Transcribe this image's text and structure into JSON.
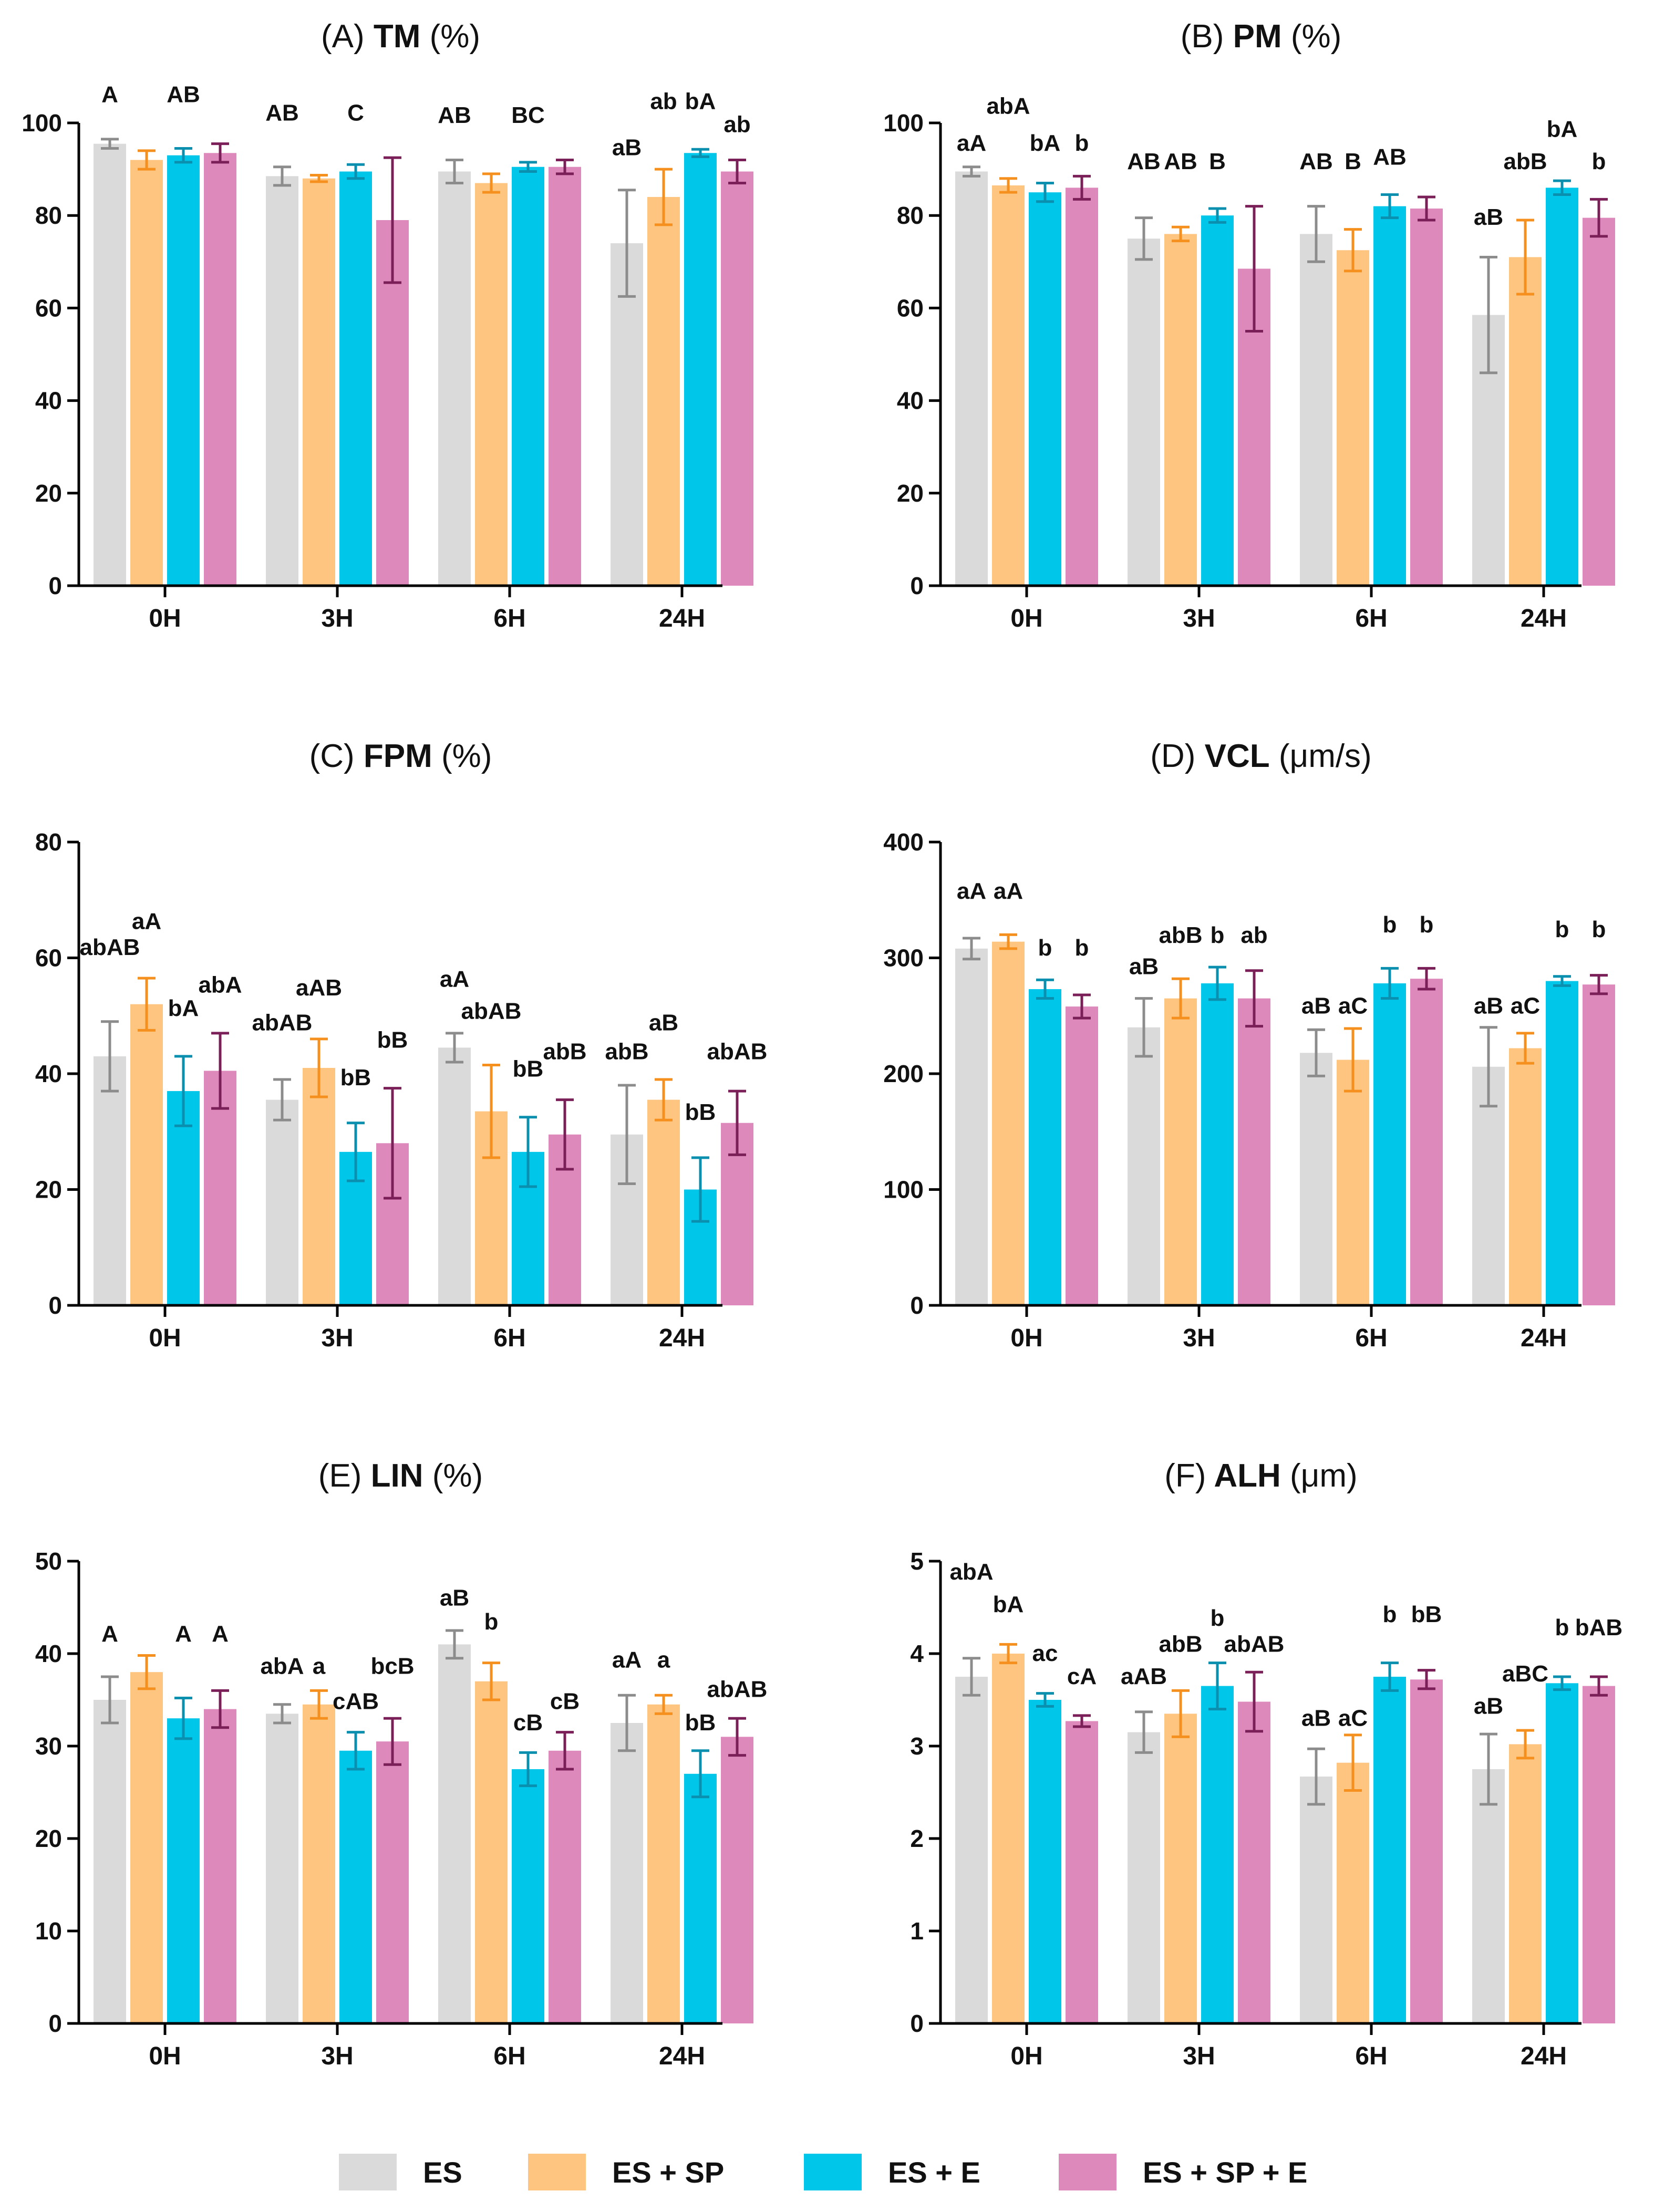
{
  "legend": {
    "items": [
      {
        "label": "ES",
        "color": "#dadada"
      },
      {
        "label": "ES + SP",
        "color": "#fdc57f"
      },
      {
        "label": "ES + E",
        "color": "#00c6ea"
      },
      {
        "label": "ES + SP + E",
        "color": "#dd89bb"
      }
    ]
  },
  "chart_data": [
    {
      "type": "bar",
      "title_prefix": "(A)",
      "title_metric": "TM",
      "title_unit": "(%)",
      "categories": [
        "0H",
        "3H",
        "6H",
        "24H"
      ],
      "ylim": [
        0,
        100
      ],
      "yticks": [
        "0",
        "20",
        "40",
        "60",
        "80",
        "100"
      ],
      "series": [
        {
          "name": "ES",
          "values": [
            95.5,
            88.5,
            89.5,
            74
          ],
          "errors": [
            1,
            2,
            2.5,
            11.5
          ]
        },
        {
          "name": "ES + SP",
          "values": [
            92,
            88,
            87,
            84
          ],
          "errors": [
            2,
            0.7,
            2,
            6
          ]
        },
        {
          "name": "ES + E",
          "values": [
            93,
            89.5,
            90.5,
            93.5
          ],
          "errors": [
            1.5,
            1.5,
            1,
            0.8
          ]
        },
        {
          "name": "ES + SP + E",
          "values": [
            93.5,
            79,
            90.5,
            89.5
          ],
          "errors": [
            2,
            13.5,
            1.5,
            2.5
          ]
        }
      ],
      "annotations": [
        {
          "category": 0,
          "series": 0,
          "text": "A",
          "value": 104.5
        },
        {
          "category": 0,
          "series": 2,
          "text": "AB",
          "value": 104.5
        },
        {
          "category": 1,
          "series": 0,
          "text": "AB",
          "value": 100.5
        },
        {
          "category": 1,
          "series": 2,
          "text": "C",
          "value": 100.5
        },
        {
          "category": 2,
          "series": 0,
          "text": "AB",
          "value": 100
        },
        {
          "category": 2,
          "series": 2,
          "text": "BC",
          "value": 100
        },
        {
          "category": 3,
          "series": 0,
          "text": "aB",
          "value": 93
        },
        {
          "category": 3,
          "series": 1,
          "text": "ab",
          "value": 103
        },
        {
          "category": 3,
          "series": 2,
          "text": "bA",
          "value": 103
        },
        {
          "category": 3,
          "series": 3,
          "text": "ab",
          "value": 98
        }
      ]
    },
    {
      "type": "bar",
      "title_prefix": "(B)",
      "title_metric": "PM",
      "title_unit": "(%)",
      "categories": [
        "0H",
        "3H",
        "6H",
        "24H"
      ],
      "ylim": [
        0,
        100
      ],
      "yticks": [
        "0",
        "20",
        "40",
        "60",
        "80",
        "100"
      ],
      "series": [
        {
          "name": "ES",
          "values": [
            89.5,
            75,
            76,
            58.5
          ],
          "errors": [
            1,
            4.5,
            6,
            12.5
          ]
        },
        {
          "name": "ES + SP",
          "values": [
            86.5,
            76,
            72.5,
            71
          ],
          "errors": [
            1.5,
            1.5,
            4.5,
            8
          ]
        },
        {
          "name": "ES + E",
          "values": [
            85,
            80,
            82,
            86
          ],
          "errors": [
            2,
            1.5,
            2.5,
            1.5
          ]
        },
        {
          "name": "ES + SP + E",
          "values": [
            86,
            68.5,
            81.5,
            79.5
          ],
          "errors": [
            2.5,
            13.5,
            2.5,
            4
          ]
        }
      ],
      "annotations": [
        {
          "category": 0,
          "series": 0,
          "text": "aA",
          "value": 94
        },
        {
          "category": 0,
          "series": 1,
          "text": "abA",
          "value": 102
        },
        {
          "category": 0,
          "series": 2,
          "text": "bA",
          "value": 94
        },
        {
          "category": 0,
          "series": 3,
          "text": "b",
          "value": 94
        },
        {
          "category": 1,
          "series": 0,
          "text": "AB",
          "value": 90
        },
        {
          "category": 1,
          "series": 1,
          "text": "AB",
          "value": 90
        },
        {
          "category": 1,
          "series": 2,
          "text": "B",
          "value": 90
        },
        {
          "category": 2,
          "series": 0,
          "text": "AB",
          "value": 90
        },
        {
          "category": 2,
          "series": 1,
          "text": "B",
          "value": 90
        },
        {
          "category": 2,
          "series": 2,
          "text": "AB",
          "value": 91
        },
        {
          "category": 3,
          "series": 0,
          "text": "aB",
          "value": 78
        },
        {
          "category": 3,
          "series": 1,
          "text": "abB",
          "value": 90
        },
        {
          "category": 3,
          "series": 2,
          "text": "bA",
          "value": 97
        },
        {
          "category": 3,
          "series": 3,
          "text": "b",
          "value": 90
        }
      ]
    },
    {
      "type": "bar",
      "title_prefix": "(C)",
      "title_metric": "FPM",
      "title_unit": "(%)",
      "categories": [
        "0H",
        "3H",
        "6H",
        "24H"
      ],
      "ylim": [
        0,
        80
      ],
      "yticks": [
        "0",
        "20",
        "40",
        "60",
        "80"
      ],
      "series": [
        {
          "name": "ES",
          "values": [
            43,
            35.5,
            44.5,
            29.5
          ],
          "errors": [
            6,
            3.5,
            2.5,
            8.5
          ]
        },
        {
          "name": "ES + SP",
          "values": [
            52,
            41,
            33.5,
            35.5
          ],
          "errors": [
            4.5,
            5,
            8,
            3.5
          ]
        },
        {
          "name": "ES + E",
          "values": [
            37,
            26.5,
            26.5,
            20
          ],
          "errors": [
            6,
            5,
            6,
            5.5
          ]
        },
        {
          "name": "ES + SP + E",
          "values": [
            40.5,
            28,
            29.5,
            31.5
          ],
          "errors": [
            6.5,
            9.5,
            6,
            5.5
          ]
        }
      ],
      "annotations": [
        {
          "category": 0,
          "series": 0,
          "text": "abAB",
          "value": 60.5
        },
        {
          "category": 0,
          "series": 1,
          "text": "aA",
          "value": 65
        },
        {
          "category": 0,
          "series": 2,
          "text": "bA",
          "value": 50
        },
        {
          "category": 0,
          "series": 3,
          "text": "abA",
          "value": 54
        },
        {
          "category": 1,
          "series": 0,
          "text": "abAB",
          "value": 47.5
        },
        {
          "category": 1,
          "series": 1,
          "text": "aAB",
          "value": 53.5
        },
        {
          "category": 1,
          "series": 2,
          "text": "bB",
          "value": 38
        },
        {
          "category": 1,
          "series": 3,
          "text": "bB",
          "value": 44.5
        },
        {
          "category": 2,
          "series": 0,
          "text": "aA",
          "value": 55
        },
        {
          "category": 2,
          "series": 1,
          "text": "abAB",
          "value": 49.5
        },
        {
          "category": 2,
          "series": 2,
          "text": "bB",
          "value": 39.5
        },
        {
          "category": 2,
          "series": 3,
          "text": "abB",
          "value": 42.5
        },
        {
          "category": 3,
          "series": 0,
          "text": "abB",
          "value": 42.5
        },
        {
          "category": 3,
          "series": 1,
          "text": "aB",
          "value": 47.5
        },
        {
          "category": 3,
          "series": 2,
          "text": "bB",
          "value": 32
        },
        {
          "category": 3,
          "series": 3,
          "text": "abAB",
          "value": 42.5
        }
      ]
    },
    {
      "type": "bar",
      "title_prefix": "(D)",
      "title_metric": "VCL",
      "title_unit": "(μm/s)",
      "categories": [
        "0H",
        "3H",
        "6H",
        "24H"
      ],
      "ylim": [
        0,
        400
      ],
      "yticks": [
        "0",
        "100",
        "200",
        "300",
        "400"
      ],
      "series": [
        {
          "name": "ES",
          "values": [
            308,
            240,
            218,
            206
          ],
          "errors": [
            9,
            25,
            20,
            34
          ]
        },
        {
          "name": "ES + SP",
          "values": [
            314,
            265,
            212,
            222
          ],
          "errors": [
            6,
            17,
            27,
            13
          ]
        },
        {
          "name": "ES + E",
          "values": [
            273,
            278,
            278,
            280
          ],
          "errors": [
            8,
            14,
            13,
            4
          ]
        },
        {
          "name": "ES + SP + E",
          "values": [
            258,
            265,
            282,
            277
          ],
          "errors": [
            10,
            24,
            9,
            8
          ]
        }
      ],
      "annotations": [
        {
          "category": 0,
          "series": 0,
          "text": "aA",
          "value": 351
        },
        {
          "category": 0,
          "series": 1,
          "text": "aA",
          "value": 351
        },
        {
          "category": 0,
          "series": 2,
          "text": "b",
          "value": 302
        },
        {
          "category": 0,
          "series": 3,
          "text": "b",
          "value": 302
        },
        {
          "category": 1,
          "series": 0,
          "text": "aB",
          "value": 286
        },
        {
          "category": 1,
          "series": 1,
          "text": "abB",
          "value": 313
        },
        {
          "category": 1,
          "series": 2,
          "text": "b",
          "value": 313
        },
        {
          "category": 1,
          "series": 3,
          "text": "ab",
          "value": 313
        },
        {
          "category": 2,
          "series": 0,
          "text": "aB",
          "value": 252
        },
        {
          "category": 2,
          "series": 1,
          "text": "aC",
          "value": 252
        },
        {
          "category": 2,
          "series": 2,
          "text": "b",
          "value": 322
        },
        {
          "category": 2,
          "series": 3,
          "text": "b",
          "value": 322
        },
        {
          "category": 3,
          "series": 0,
          "text": "aB",
          "value": 252
        },
        {
          "category": 3,
          "series": 1,
          "text": "aC",
          "value": 252
        },
        {
          "category": 3,
          "series": 2,
          "text": "b",
          "value": 318
        },
        {
          "category": 3,
          "series": 3,
          "text": "b",
          "value": 318
        }
      ]
    },
    {
      "type": "bar",
      "title_prefix": "(E)",
      "title_metric": "LIN",
      "title_unit": "(%)",
      "categories": [
        "0H",
        "3H",
        "6H",
        "24H"
      ],
      "ylim": [
        0,
        50
      ],
      "yticks": [
        "0",
        "10",
        "20",
        "30",
        "40",
        "50"
      ],
      "series": [
        {
          "name": "ES",
          "values": [
            35,
            33.5,
            41,
            32.5
          ],
          "errors": [
            2.5,
            1,
            1.5,
            3
          ]
        },
        {
          "name": "ES + SP",
          "values": [
            38,
            34.5,
            37,
            34.5
          ],
          "errors": [
            1.8,
            1.5,
            2,
            1
          ]
        },
        {
          "name": "ES + E",
          "values": [
            33,
            29.5,
            27.5,
            27
          ],
          "errors": [
            2.2,
            2,
            1.8,
            2.5
          ]
        },
        {
          "name": "ES + SP + E",
          "values": [
            34,
            30.5,
            29.5,
            31
          ],
          "errors": [
            2,
            2.5,
            2,
            2
          ]
        }
      ],
      "annotations": [
        {
          "category": 0,
          "series": 0,
          "text": "A",
          "value": 41.3
        },
        {
          "category": 0,
          "series": 2,
          "text": "A",
          "value": 41.3
        },
        {
          "category": 0,
          "series": 3,
          "text": "A",
          "value": 41.3
        },
        {
          "category": 1,
          "series": 0,
          "text": "abA",
          "value": 37.8
        },
        {
          "category": 1,
          "series": 1,
          "text": "a",
          "value": 37.8
        },
        {
          "category": 1,
          "series": 2,
          "text": "cAB",
          "value": 34
        },
        {
          "category": 1,
          "series": 3,
          "text": "bcB",
          "value": 37.8
        },
        {
          "category": 2,
          "series": 0,
          "text": "aB",
          "value": 45.2
        },
        {
          "category": 2,
          "series": 1,
          "text": "b",
          "value": 42.6
        },
        {
          "category": 2,
          "series": 2,
          "text": "cB",
          "value": 31.7
        },
        {
          "category": 2,
          "series": 3,
          "text": "cB",
          "value": 34
        },
        {
          "category": 3,
          "series": 0,
          "text": "aA",
          "value": 38.5
        },
        {
          "category": 3,
          "series": 1,
          "text": "a",
          "value": 38.5
        },
        {
          "category": 3,
          "series": 2,
          "text": "bB",
          "value": 31.7
        },
        {
          "category": 3,
          "series": 3,
          "text": "abAB",
          "value": 35.3
        }
      ]
    },
    {
      "type": "bar",
      "title_prefix": "(F)",
      "title_metric": "ALH",
      "title_unit": "(μm)",
      "categories": [
        "0H",
        "3H",
        "6H",
        "24H"
      ],
      "ylim": [
        0,
        5
      ],
      "yticks": [
        "0",
        "1",
        "2",
        "3",
        "4",
        "5"
      ],
      "series": [
        {
          "name": "ES",
          "values": [
            3.75,
            3.15,
            2.67,
            2.75
          ],
          "errors": [
            0.2,
            0.22,
            0.3,
            0.38
          ]
        },
        {
          "name": "ES + SP",
          "values": [
            4,
            3.35,
            2.82,
            3.02
          ],
          "errors": [
            0.1,
            0.25,
            0.3,
            0.15
          ]
        },
        {
          "name": "ES + E",
          "values": [
            3.5,
            3.65,
            3.75,
            3.68
          ],
          "errors": [
            0.07,
            0.25,
            0.15,
            0.07
          ]
        },
        {
          "name": "ES + SP + E",
          "values": [
            3.27,
            3.48,
            3.72,
            3.65
          ],
          "errors": [
            0.06,
            0.32,
            0.1,
            0.1
          ]
        }
      ],
      "annotations": [
        {
          "category": 0,
          "series": 0,
          "text": "abA",
          "value": 4.8
        },
        {
          "category": 0,
          "series": 1,
          "text": "bA",
          "value": 4.45
        },
        {
          "category": 0,
          "series": 2,
          "text": "ac",
          "value": 3.92
        },
        {
          "category": 0,
          "series": 3,
          "text": "cA",
          "value": 3.67
        },
        {
          "category": 1,
          "series": 0,
          "text": "aAB",
          "value": 3.67
        },
        {
          "category": 1,
          "series": 1,
          "text": "abB",
          "value": 4.02
        },
        {
          "category": 1,
          "series": 2,
          "text": "b",
          "value": 4.3
        },
        {
          "category": 1,
          "series": 3,
          "text": "abAB",
          "value": 4.02
        },
        {
          "category": 2,
          "series": 0,
          "text": "aB",
          "value": 3.22
        },
        {
          "category": 2,
          "series": 1,
          "text": "aC",
          "value": 3.22
        },
        {
          "category": 2,
          "series": 2,
          "text": "b",
          "value": 4.34
        },
        {
          "category": 2,
          "series": 3,
          "text": "bB",
          "value": 4.34
        },
        {
          "category": 3,
          "series": 0,
          "text": "aB",
          "value": 3.35
        },
        {
          "category": 3,
          "series": 1,
          "text": "aBC",
          "value": 3.7
        },
        {
          "category": 3,
          "series": 2,
          "text": "b",
          "value": 4.2
        },
        {
          "category": 3,
          "series": 3,
          "text": "bAB",
          "value": 4.2
        }
      ]
    }
  ]
}
